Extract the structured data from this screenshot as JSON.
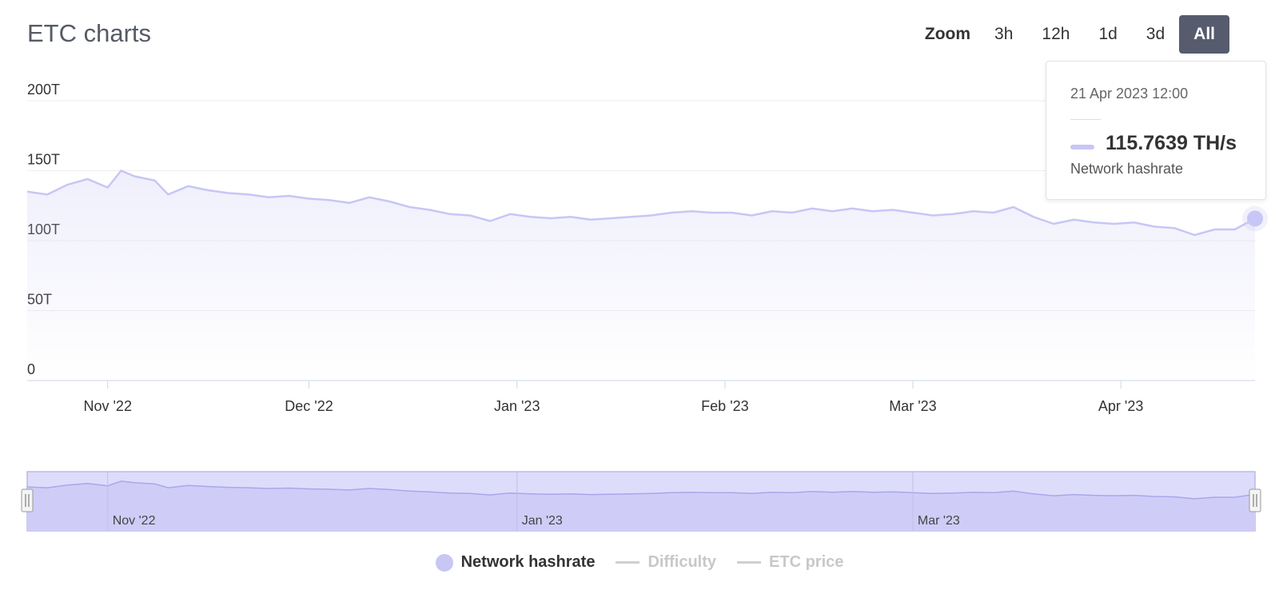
{
  "title": "ETC charts",
  "zoom": {
    "label": "Zoom",
    "buttons": [
      "3h",
      "12h",
      "1d",
      "3d",
      "All"
    ],
    "active": "All"
  },
  "tooltip": {
    "date": "21 Apr 2023 12:00",
    "value": "115.7639 TH/s",
    "series": "Network hashrate"
  },
  "legend": {
    "items": [
      {
        "label": "Network hashrate",
        "enabled": true,
        "color": "#c7c6f5"
      },
      {
        "label": "Difficulty",
        "enabled": false,
        "color": "#cfcfcf"
      },
      {
        "label": "ETC price",
        "enabled": false,
        "color": "#cfcfcf"
      }
    ]
  },
  "navigator": {
    "tick_labels": [
      "Nov '22",
      "Jan '23",
      "Mar '23"
    ]
  },
  "chart_data": {
    "type": "area",
    "title": "ETC charts",
    "xlabel": "",
    "ylabel": "",
    "ylim": [
      0,
      200
    ],
    "y_ticks": [
      "0",
      "50T",
      "100T",
      "150T",
      "200T"
    ],
    "x_ticks": [
      "Nov '22",
      "Dec '22",
      "Jan '23",
      "Feb '23",
      "Mar '23",
      "Apr '23"
    ],
    "xlim": [
      "2022-10-20",
      "2023-04-21"
    ],
    "grid": true,
    "legend_position": "bottom",
    "series": [
      {
        "name": "Network hashrate",
        "unit": "TH/s",
        "color": "#c7c6f5",
        "points": [
          [
            "2022-10-20",
            135
          ],
          [
            "2022-10-23",
            133
          ],
          [
            "2022-10-26",
            140
          ],
          [
            "2022-10-29",
            144
          ],
          [
            "2022-11-01",
            138
          ],
          [
            "2022-11-03",
            150
          ],
          [
            "2022-11-05",
            146
          ],
          [
            "2022-11-08",
            143
          ],
          [
            "2022-11-10",
            133
          ],
          [
            "2022-11-13",
            139
          ],
          [
            "2022-11-16",
            136
          ],
          [
            "2022-11-19",
            134
          ],
          [
            "2022-11-22",
            133
          ],
          [
            "2022-11-25",
            131
          ],
          [
            "2022-11-28",
            132
          ],
          [
            "2022-12-01",
            130
          ],
          [
            "2022-12-04",
            129
          ],
          [
            "2022-12-07",
            127
          ],
          [
            "2022-12-10",
            131
          ],
          [
            "2022-12-13",
            128
          ],
          [
            "2022-12-16",
            124
          ],
          [
            "2022-12-19",
            122
          ],
          [
            "2022-12-22",
            119
          ],
          [
            "2022-12-25",
            118
          ],
          [
            "2022-12-28",
            114
          ],
          [
            "2022-12-31",
            119
          ],
          [
            "2023-01-03",
            117
          ],
          [
            "2023-01-06",
            116
          ],
          [
            "2023-01-09",
            117
          ],
          [
            "2023-01-12",
            115
          ],
          [
            "2023-01-15",
            116
          ],
          [
            "2023-01-18",
            117
          ],
          [
            "2023-01-21",
            118
          ],
          [
            "2023-01-24",
            120
          ],
          [
            "2023-01-27",
            121
          ],
          [
            "2023-01-30",
            120
          ],
          [
            "2023-02-02",
            120
          ],
          [
            "2023-02-05",
            118
          ],
          [
            "2023-02-08",
            121
          ],
          [
            "2023-02-11",
            120
          ],
          [
            "2023-02-14",
            123
          ],
          [
            "2023-02-17",
            121
          ],
          [
            "2023-02-20",
            123
          ],
          [
            "2023-02-23",
            121
          ],
          [
            "2023-02-26",
            122
          ],
          [
            "2023-03-01",
            120
          ],
          [
            "2023-03-04",
            118
          ],
          [
            "2023-03-07",
            119
          ],
          [
            "2023-03-10",
            121
          ],
          [
            "2023-03-13",
            120
          ],
          [
            "2023-03-16",
            124
          ],
          [
            "2023-03-19",
            117
          ],
          [
            "2023-03-22",
            112
          ],
          [
            "2023-03-25",
            115
          ],
          [
            "2023-03-28",
            113
          ],
          [
            "2023-03-31",
            112
          ],
          [
            "2023-04-03",
            113
          ],
          [
            "2023-04-06",
            110
          ],
          [
            "2023-04-09",
            109
          ],
          [
            "2023-04-12",
            104
          ],
          [
            "2023-04-15",
            108
          ],
          [
            "2023-04-18",
            108
          ],
          [
            "2023-04-21",
            115.7639
          ]
        ]
      }
    ]
  }
}
